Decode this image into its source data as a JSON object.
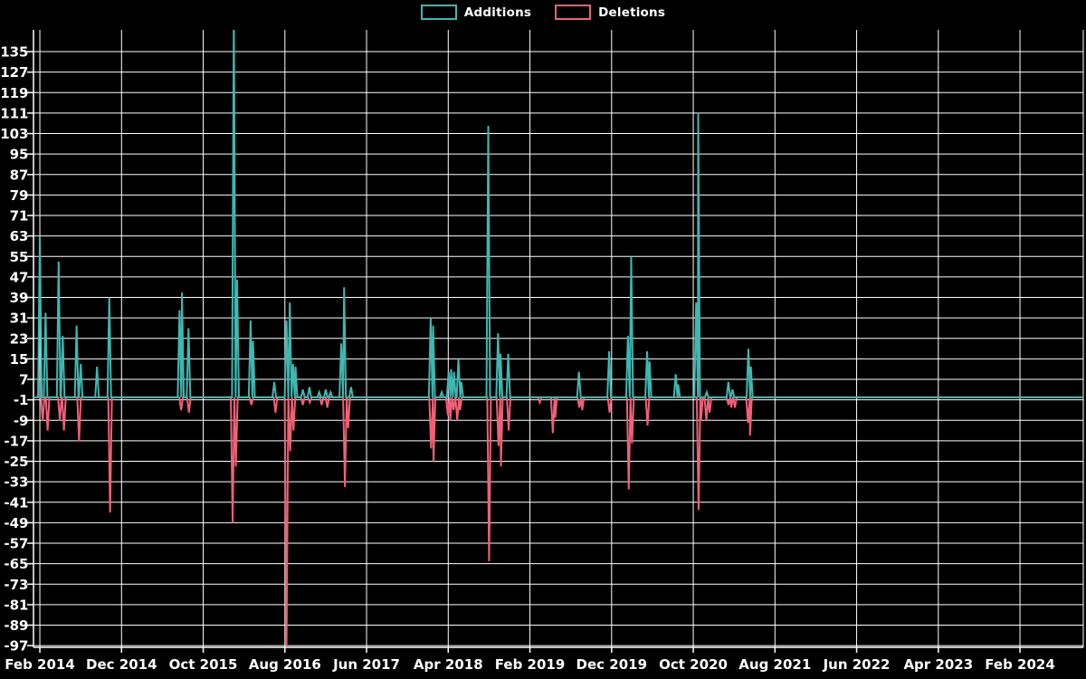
{
  "chart_data": {
    "type": "line",
    "title": "",
    "description": "Spiky additions/deletions time series on black background with white grid",
    "background_color": "#000000",
    "grid_color": "#ffffff",
    "legend": [
      {
        "label": "Additions",
        "color": "#3db8b2"
      },
      {
        "label": "Deletions",
        "color": "#f06078"
      }
    ],
    "x_axis": {
      "tick_labels": [
        "Feb 2014",
        "Dec 2014",
        "Oct 2015",
        "Aug 2016",
        "Jun 2017",
        "Apr 2018",
        "Feb 2019",
        "Dec 2019",
        "Oct 2020",
        "Aug 2021",
        "Jun 2022",
        "Apr 2023",
        "Feb 2024"
      ],
      "tick_months": [
        0,
        10,
        20,
        30,
        40,
        50,
        60,
        70,
        80,
        90,
        100,
        110,
        120
      ],
      "x_unit": "months since Feb 2014",
      "domain_months": [
        -0.78,
        127.75
      ],
      "grid": true
    },
    "y_axis": {
      "ticks": [
        135,
        127,
        119,
        111,
        103,
        95,
        87,
        79,
        71,
        63,
        55,
        47,
        39,
        31,
        23,
        15,
        7,
        -1,
        -9,
        -17,
        -25,
        -33,
        -41,
        -49,
        -57,
        -65,
        -73,
        -81,
        -89,
        -97
      ],
      "domain": [
        -97.65,
        143.5
      ],
      "grid": true
    },
    "spike_half_width_months": 0.22,
    "series": [
      {
        "name": "Deletions",
        "color": "#f06078",
        "baseline": 0,
        "spikes": [
          [
            0.35,
            -9
          ],
          [
            0.95,
            -13
          ],
          [
            2.45,
            -9
          ],
          [
            2.95,
            -13
          ],
          [
            4.8,
            -17
          ],
          [
            8.6,
            -45
          ],
          [
            17.3,
            -5
          ],
          [
            18.25,
            -6
          ],
          [
            23.6,
            -49
          ],
          [
            24.0,
            -27
          ],
          [
            25.9,
            -3
          ],
          [
            28.85,
            -6
          ],
          [
            30.2,
            -97
          ],
          [
            30.65,
            -21
          ],
          [
            31.05,
            -13
          ],
          [
            32.2,
            -3
          ],
          [
            33.05,
            -2
          ],
          [
            34.5,
            -3
          ],
          [
            35.2,
            -4
          ],
          [
            37.35,
            -35
          ],
          [
            37.75,
            -12
          ],
          [
            47.9,
            -20
          ],
          [
            48.2,
            -25
          ],
          [
            49.95,
            -7
          ],
          [
            50.25,
            -9
          ],
          [
            50.65,
            -5
          ],
          [
            51.1,
            -9
          ],
          [
            51.45,
            -5
          ],
          [
            55.0,
            -64
          ],
          [
            56.15,
            -19
          ],
          [
            56.45,
            -27
          ],
          [
            57.4,
            -13
          ],
          [
            61.2,
            -2
          ],
          [
            62.8,
            -14
          ],
          [
            63.1,
            -8
          ],
          [
            66.05,
            -4
          ],
          [
            66.4,
            -5
          ],
          [
            69.75,
            -6
          ],
          [
            72.1,
            -36
          ],
          [
            72.5,
            -18
          ],
          [
            74.4,
            -11
          ],
          [
            80.65,
            -44
          ],
          [
            80.95,
            -9
          ],
          [
            81.6,
            -9
          ],
          [
            82.0,
            -6
          ],
          [
            84.3,
            -3
          ],
          [
            84.65,
            -4
          ],
          [
            85.1,
            -4
          ],
          [
            86.7,
            -10
          ],
          [
            86.95,
            -15
          ]
        ]
      },
      {
        "name": "Additions",
        "color": "#3db8b2",
        "baseline": 0,
        "spikes": [
          [
            0.0,
            63
          ],
          [
            0.7,
            33
          ],
          [
            2.3,
            53
          ],
          [
            2.8,
            24
          ],
          [
            4.5,
            28
          ],
          [
            5.0,
            13
          ],
          [
            7.0,
            12
          ],
          [
            8.5,
            39
          ],
          [
            17.1,
            34
          ],
          [
            17.4,
            41
          ],
          [
            18.2,
            27
          ],
          [
            23.75,
            150
          ],
          [
            24.15,
            46
          ],
          [
            25.8,
            30
          ],
          [
            26.1,
            22
          ],
          [
            28.7,
            6
          ],
          [
            30.2,
            30
          ],
          [
            30.6,
            37
          ],
          [
            31.0,
            13
          ],
          [
            31.3,
            12
          ],
          [
            32.2,
            3
          ],
          [
            33.0,
            4
          ],
          [
            34.2,
            2
          ],
          [
            35.0,
            3
          ],
          [
            35.6,
            2
          ],
          [
            36.9,
            21
          ],
          [
            37.25,
            43
          ],
          [
            38.1,
            4
          ],
          [
            47.85,
            31
          ],
          [
            48.15,
            28
          ],
          [
            49.2,
            2
          ],
          [
            50.05,
            10
          ],
          [
            50.35,
            11
          ],
          [
            50.7,
            10
          ],
          [
            51.25,
            15
          ],
          [
            51.6,
            6
          ],
          [
            54.9,
            106
          ],
          [
            56.1,
            25
          ],
          [
            56.4,
            17
          ],
          [
            57.35,
            17
          ],
          [
            66.0,
            10
          ],
          [
            69.7,
            18
          ],
          [
            72.0,
            24
          ],
          [
            72.4,
            55
          ],
          [
            74.35,
            18
          ],
          [
            74.65,
            14
          ],
          [
            77.85,
            9
          ],
          [
            78.15,
            5
          ],
          [
            80.35,
            37
          ],
          [
            80.6,
            111
          ],
          [
            81.65,
            2
          ],
          [
            84.3,
            6
          ],
          [
            84.8,
            3
          ],
          [
            86.75,
            19
          ],
          [
            87.05,
            12
          ]
        ]
      }
    ]
  }
}
